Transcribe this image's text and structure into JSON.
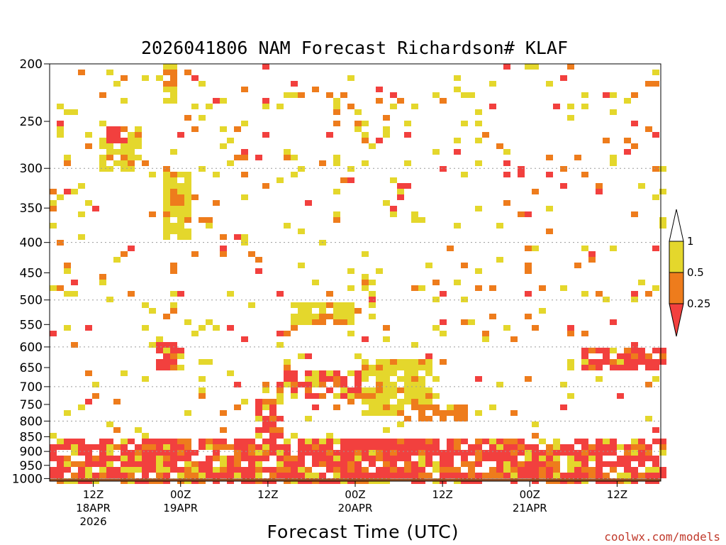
{
  "chart_data": {
    "type": "heatmap",
    "title": "2026041806 NAM Forecast Richardson# KLAF",
    "xlabel": "Forecast Time (UTC)",
    "ylabel": "",
    "y_axis": {
      "scale": "pressure (log, inverted)",
      "unit": "",
      "range": [
        1010,
        200
      ],
      "ticks": [
        "200",
        "250",
        "300",
        "350",
        "400",
        "450",
        "500",
        "550",
        "600",
        "650",
        "700",
        "750",
        "800",
        "850",
        "900",
        "950",
        "1000"
      ]
    },
    "x_axis": {
      "range": [
        "2026-04-18 06Z",
        "2026-04-21 18Z"
      ],
      "ticks": [
        {
          "time": "2026-04-18 12Z",
          "lines": [
            "12Z",
            "18APR",
            "2026"
          ]
        },
        {
          "time": "2026-04-19 00Z",
          "lines": [
            "00Z",
            "19APR"
          ]
        },
        {
          "time": "2026-04-19 12Z",
          "lines": [
            "12Z"
          ]
        },
        {
          "time": "2026-04-20 00Z",
          "lines": [
            "00Z",
            "20APR"
          ]
        },
        {
          "time": "2026-04-20 12Z",
          "lines": [
            "12Z"
          ]
        },
        {
          "time": "2026-04-21 00Z",
          "lines": [
            "00Z",
            "21APR"
          ]
        },
        {
          "time": "2026-04-21 12Z",
          "lines": [
            "12Z"
          ]
        }
      ]
    },
    "grid": {
      "horizontal": true,
      "style": "dotted",
      "levels": [
        300,
        400,
        500,
        600,
        700,
        800,
        900,
        1000
      ]
    },
    "colorbar": {
      "placement": "right",
      "ticks": [
        "1",
        "0.5",
        "0.25"
      ],
      "bins": [
        {
          "range": "above 1",
          "color": "#ffffff"
        },
        {
          "range": "0.5-1",
          "color": "#e4d72c"
        },
        {
          "range": "0.25-0.5",
          "color": "#ee7c1c"
        },
        {
          "range": "below 0.25",
          "color": "#f2403e"
        }
      ]
    },
    "colors": {
      "yellow": "#e4d72c",
      "orange": "#ee7c1c",
      "red": "#f2403e",
      "ground": "#9a5124"
    },
    "ground": {
      "from": 1000,
      "to": 1010,
      "color": "#9a5124"
    },
    "regions": [
      {
        "bin": "0.5-1",
        "t": [
          "04-18 12Z",
          "04-18 18Z"
        ],
        "p": [
          250,
          300
        ]
      },
      {
        "bin": "below 0.25",
        "t": [
          "04-18 13Z",
          "04-18 16Z"
        ],
        "p": [
          250,
          270
        ]
      },
      {
        "bin": "0.5-1",
        "t": [
          "04-18 21Z",
          "04-18 23Z"
        ],
        "p": [
          200,
          230
        ]
      },
      {
        "bin": "orange",
        "note": "0.25-0.5",
        "bin2": "",
        "t": [
          "04-18 22Z",
          "04-18 23Z"
        ],
        "p": [
          200,
          215
        ]
      },
      {
        "bin": "below 0.25",
        "t": [
          "04-18 21Z",
          "04-19 00Z"
        ],
        "p": [
          320,
          370
        ]
      },
      {
        "bin": "0.5-1",
        "t": [
          "04-18 21Z",
          "04-19 01Z"
        ],
        "p": [
          300,
          390
        ]
      },
      {
        "bin": "below 0.25",
        "t": [
          "04-18 20Z",
          "04-19 00Z"
        ],
        "p": [
          580,
          650
        ]
      },
      {
        "bin": "0.5-1",
        "t": [
          "04-19 15Z",
          "04-19 23Z"
        ],
        "p": [
          500,
          540
        ]
      },
      {
        "bin": "below 0.25",
        "t": [
          "04-19 13Z",
          "04-20 01Z"
        ],
        "p": [
          650,
          730
        ]
      },
      {
        "bin": "0.5-1",
        "t": [
          "04-20 00Z",
          "04-20 10Z"
        ],
        "p": [
          620,
          780
        ]
      },
      {
        "bin": "below 0.25",
        "t": [
          "04-19 10Z",
          "04-19 14Z"
        ],
        "p": [
          720,
          900
        ]
      },
      {
        "bin": "orange",
        "t": [
          "04-20 06Z",
          "04-20 15Z"
        ],
        "p": [
          750,
          800
        ]
      },
      {
        "bin": "below 0.25",
        "t": [
          "04-21 07Z",
          "04-21 18Z"
        ],
        "p": [
          590,
          650
        ]
      },
      {
        "bin": "below 0.25",
        "t": [
          "04-18 06Z",
          "04-21 18Z"
        ],
        "p": [
          850,
          1000
        ]
      }
    ]
  },
  "credit": "coolwx.com/models"
}
